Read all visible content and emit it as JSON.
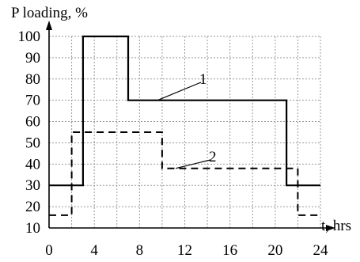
{
  "chart_data": {
    "type": "line",
    "title": "",
    "ylabel": "P loading, %",
    "xlabel": "t, hrs",
    "xlim": [
      0,
      24
    ],
    "ylim": [
      10,
      100
    ],
    "grid": true,
    "legend": "none",
    "x_ticks": [
      "0",
      "4",
      "8",
      "12",
      "16",
      "20",
      "24"
    ],
    "y_ticks": [
      "100",
      "90",
      "80",
      "70",
      "60",
      "50",
      "40",
      "30",
      "20",
      "10"
    ],
    "series": [
      {
        "name": "1",
        "style": "solid",
        "x": [
          0,
          3,
          3,
          7,
          7,
          21,
          21,
          24
        ],
        "y": [
          30,
          30,
          100,
          100,
          70,
          70,
          30,
          30
        ]
      },
      {
        "name": "2",
        "style": "dashed",
        "x": [
          0,
          2,
          2,
          10,
          10,
          22,
          22,
          24
        ],
        "y": [
          16,
          16,
          55,
          55,
          38,
          38,
          16,
          16
        ]
      }
    ]
  }
}
